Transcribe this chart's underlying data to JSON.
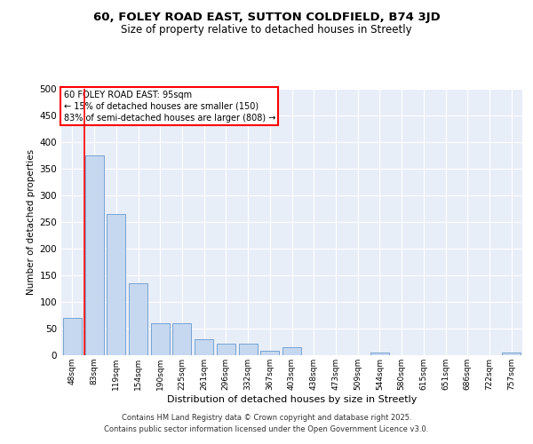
{
  "title1": "60, FOLEY ROAD EAST, SUTTON COLDFIELD, B74 3JD",
  "title2": "Size of property relative to detached houses in Streetly",
  "xlabel": "Distribution of detached houses by size in Streetly",
  "ylabel": "Number of detached properties",
  "categories": [
    "48sqm",
    "83sqm",
    "119sqm",
    "154sqm",
    "190sqm",
    "225sqm",
    "261sqm",
    "296sqm",
    "332sqm",
    "367sqm",
    "403sqm",
    "438sqm",
    "473sqm",
    "509sqm",
    "544sqm",
    "580sqm",
    "615sqm",
    "651sqm",
    "686sqm",
    "722sqm",
    "757sqm"
  ],
  "values": [
    70,
    375,
    265,
    135,
    60,
    60,
    30,
    22,
    22,
    8,
    15,
    0,
    0,
    0,
    5,
    0,
    0,
    0,
    0,
    0,
    5
  ],
  "bar_color": "#c5d8f0",
  "bar_edge_color": "#6699cc",
  "red_line_index": 1,
  "annotation_title": "60 FOLEY ROAD EAST: 95sqm",
  "annotation_line1": "← 15% of detached houses are smaller (150)",
  "annotation_line2": "83% of semi-detached houses are larger (808) →",
  "ylim": [
    0,
    500
  ],
  "yticks": [
    0,
    50,
    100,
    150,
    200,
    250,
    300,
    350,
    400,
    450,
    500
  ],
  "bg_color": "#e8eef8",
  "grid_color": "#ffffff",
  "footer1": "Contains HM Land Registry data © Crown copyright and database right 2025.",
  "footer2": "Contains public sector information licensed under the Open Government Licence v3.0."
}
